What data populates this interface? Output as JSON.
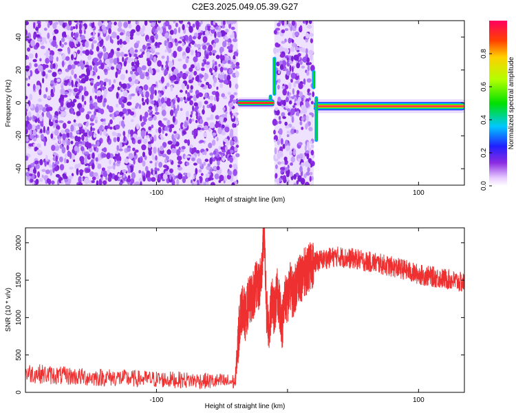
{
  "title": "C2E3.2025.049.05.39.G27",
  "chart_data": [
    {
      "type": "heatmap",
      "xlabel": "Height of straight line (km)",
      "ylabel": "Frequency (Hz)",
      "xlim": [
        -200,
        135
      ],
      "ylim": [
        -50,
        50
      ],
      "xticks": [
        -100,
        0,
        100
      ],
      "xtick_labels": [
        "-100",
        "",
        "100"
      ],
      "yticks": [
        -40,
        -20,
        0,
        20,
        40
      ],
      "yticks_labels": [
        "-40",
        "-20",
        "0",
        "20",
        "40"
      ],
      "colorbar": {
        "label": "Normalized spectral amplitude",
        "range": [
          0.0,
          1.0
        ],
        "ticks": [
          0.0,
          0.2,
          0.4,
          0.6,
          0.8
        ],
        "tick_labels": [
          "0.0",
          "0.2",
          "0.4",
          "0.6",
          "0.8"
        ],
        "colormap": "rainbow"
      },
      "regions": [
        {
          "x": [
            -200,
            -38
          ],
          "kind": "noise",
          "amplitude": 0.1
        },
        {
          "x": [
            -38,
            -10
          ],
          "kind": "weak-signal",
          "freq": 0,
          "amplitude": 0.75
        },
        {
          "x": [
            -10,
            20
          ],
          "kind": "noise",
          "amplitude": 0.1
        },
        {
          "x": [
            20,
            135
          ],
          "kind": "strong-signal",
          "freq": -2,
          "amplitude": 0.98
        }
      ],
      "grid": false
    },
    {
      "type": "line",
      "xlabel": "Height of straight line (km)",
      "ylabel": "SNR (10 * v/v)",
      "xlim": [
        -200,
        135
      ],
      "ylim": [
        0,
        2200
      ],
      "xticks": [
        -100,
        0,
        100
      ],
      "xtick_labels": [
        "-100",
        "",
        "100"
      ],
      "yticks": [
        0,
        500,
        1000,
        1500,
        2000
      ],
      "ytick_labels": [
        "0",
        "500",
        "1000",
        "1500",
        "2000"
      ],
      "series": [
        {
          "color": "#ef3030",
          "x": [
            -200,
            -190,
            -180,
            -170,
            -160,
            -150,
            -140,
            -130,
            -120,
            -110,
            -100,
            -90,
            -80,
            -70,
            -60,
            -50,
            -40,
            -38,
            -36,
            -34,
            -32,
            -30,
            -28,
            -26,
            -24,
            -22,
            -20,
            -18,
            -16,
            -14,
            -12,
            -10,
            -8,
            -6,
            -4,
            -2,
            0,
            2,
            4,
            6,
            8,
            10,
            12,
            14,
            16,
            18,
            20,
            22,
            25,
            30,
            35,
            40,
            45,
            50,
            55,
            60,
            65,
            70,
            75,
            80,
            85,
            90,
            95,
            100,
            105,
            110,
            115,
            120,
            125,
            130,
            135
          ],
          "values": [
            260,
            250,
            230,
            220,
            210,
            200,
            200,
            195,
            185,
            180,
            175,
            170,
            165,
            160,
            150,
            145,
            140,
            600,
            1050,
            1150,
            1000,
            1200,
            1250,
            1300,
            1450,
            1380,
            1550,
            2200,
            1100,
            800,
            1250,
            1050,
            1350,
            1150,
            900,
            1300,
            1200,
            1450,
            1300,
            1400,
            1550,
            1500,
            1600,
            1620,
            1650,
            1700,
            1720,
            1750,
            1770,
            1790,
            1810,
            1820,
            1790,
            1790,
            1770,
            1750,
            1740,
            1720,
            1700,
            1680,
            1660,
            1640,
            1600,
            1580,
            1560,
            1550,
            1530,
            1520,
            1500,
            1480,
            1460
          ]
        }
      ],
      "grid": false
    }
  ]
}
